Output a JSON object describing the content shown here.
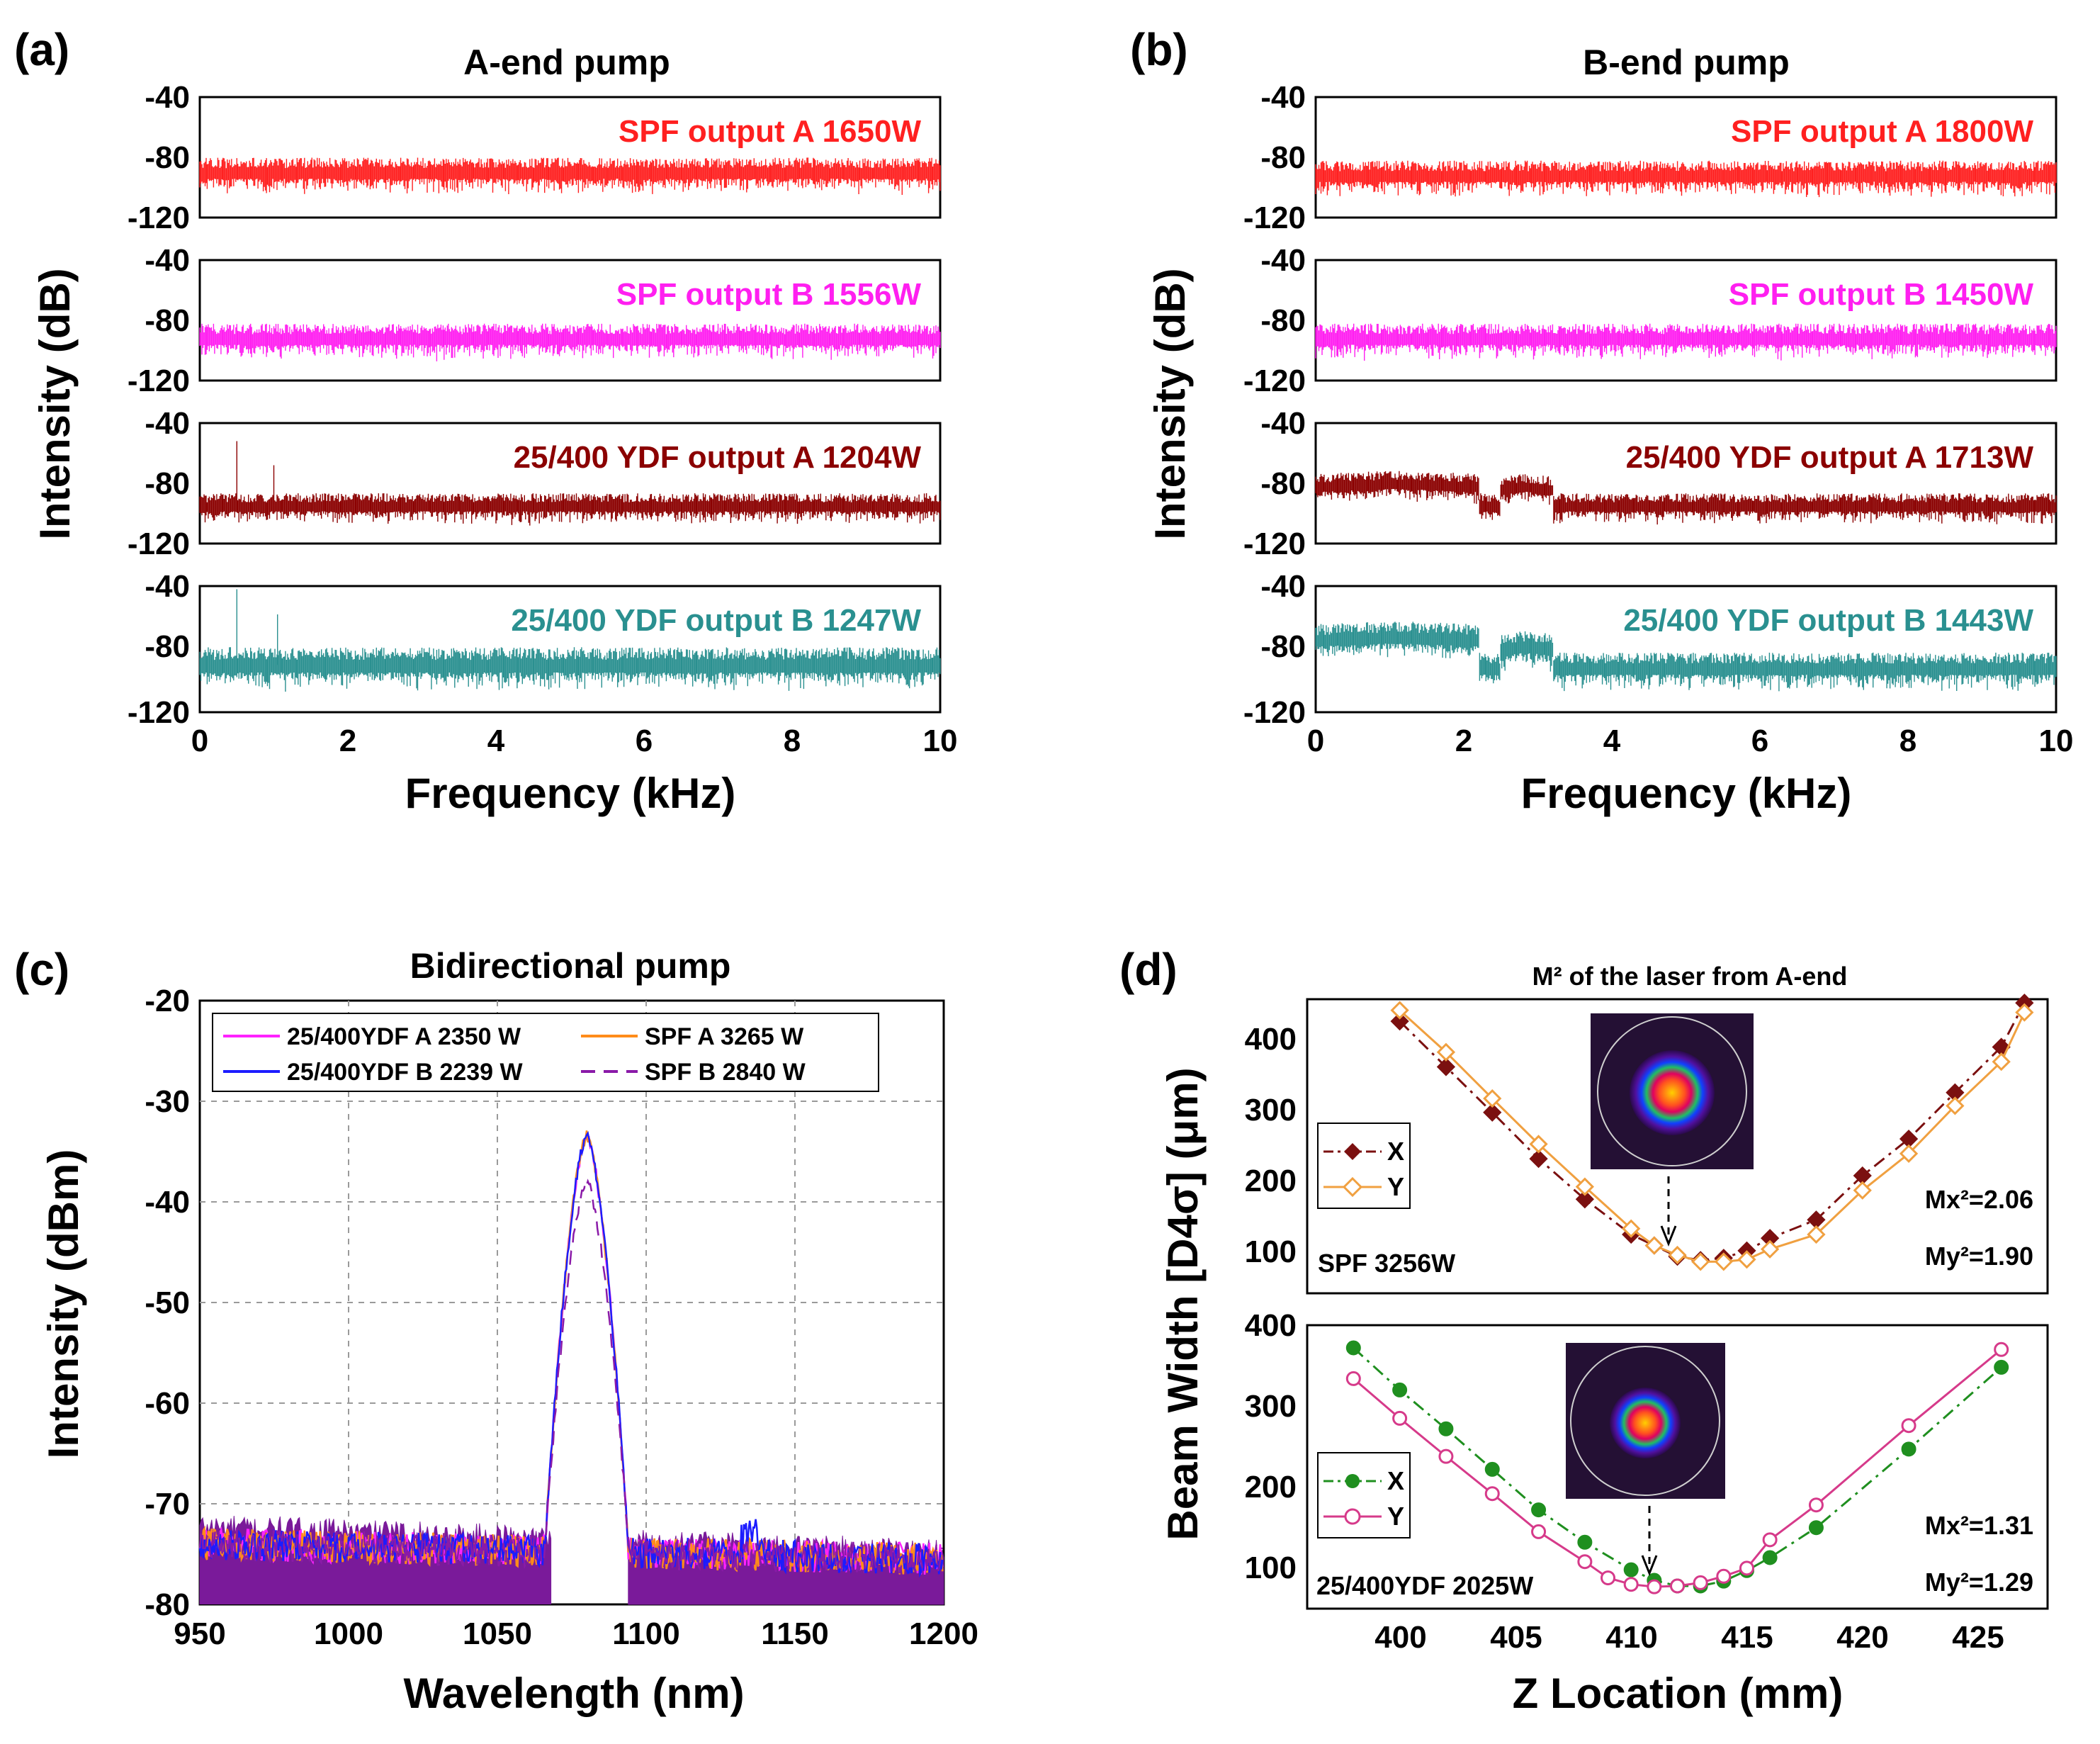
{
  "chart_data": [
    {
      "id": "a",
      "panel_label": "(a)",
      "title": "A-end pump",
      "type": "line",
      "xlabel": "Frequency (kHz)",
      "ylabel": "Intensity (dB)",
      "xlim": [
        0,
        10
      ],
      "ylim": [
        -120,
        -40
      ],
      "xticks": [
        "0",
        "2",
        "4",
        "6",
        "8",
        "10"
      ],
      "yticks": [
        "-40",
        "-80",
        "-120"
      ],
      "series": [
        {
          "name": "SPF output A 1650W",
          "color": "#ff2020",
          "baseline": -90,
          "spread": 7,
          "spikes": [],
          "bumps": []
        },
        {
          "name": "SPF output B 1556W",
          "color": "#ff1ff0",
          "baseline": -92,
          "spread": 7,
          "spikes": [],
          "bumps": []
        },
        {
          "name": "25/400 YDF output A 1204W",
          "color": "#8b0000",
          "baseline": -95,
          "spread": 6,
          "spikes": [
            [
              0.5,
              -52
            ],
            [
              1.0,
              -68
            ]
          ],
          "bumps": []
        },
        {
          "name": "25/400 YDF output B 1247W",
          "color": "#2a9090",
          "baseline": -90,
          "spread": 8,
          "spikes": [
            [
              0.5,
              -42
            ],
            [
              1.05,
              -58
            ]
          ],
          "bumps": []
        }
      ]
    },
    {
      "id": "b",
      "panel_label": "(b)",
      "title": "B-end pump",
      "type": "line",
      "xlabel": "Frequency (kHz)",
      "ylabel": "Intensity (dB)",
      "xlim": [
        0,
        10
      ],
      "ylim": [
        -120,
        -40
      ],
      "xticks": [
        "0",
        "2",
        "4",
        "6",
        "8",
        "10"
      ],
      "yticks": [
        "-40",
        "-80",
        "-120"
      ],
      "series": [
        {
          "name": "SPF output A 1800W",
          "color": "#ff2020",
          "baseline": -92,
          "spread": 7,
          "spikes": [],
          "bumps": []
        },
        {
          "name": "SPF output B 1450W",
          "color": "#ff1ff0",
          "baseline": -92,
          "spread": 7,
          "spikes": [],
          "bumps": []
        },
        {
          "name": "25/400 YDF output A 1713W",
          "color": "#8b0000",
          "baseline": -95,
          "spread": 6,
          "spikes": [],
          "bumps": [
            [
              0,
              2.2,
              -80
            ],
            [
              2.5,
              3.2,
              -82
            ]
          ]
        },
        {
          "name": "25/400 YDF output B 1443W",
          "color": "#2a9090",
          "baseline": -92,
          "spread": 7,
          "spikes": [],
          "bumps": [
            [
              0,
              2.2,
              -72
            ],
            [
              2.5,
              3.2,
              -78
            ]
          ]
        }
      ]
    },
    {
      "id": "c",
      "panel_label": "(c)",
      "title": "Bidirectional pump",
      "type": "line",
      "xlabel": "Wavelength (nm)",
      "ylabel": "Intensity (dBm)",
      "xlim": [
        950,
        1200
      ],
      "ylim": [
        -80,
        -20
      ],
      "xticks": [
        "950",
        "1000",
        "1050",
        "1100",
        "1150",
        "1200"
      ],
      "yticks": [
        "-20",
        "-30",
        "-40",
        "-50",
        "-60",
        "-70",
        "-80"
      ],
      "series": [
        {
          "name": "25/400YDF A 2350 W",
          "color": "#ff22ff",
          "dash": "",
          "peak_x": 1080,
          "peak_y": -33.5
        },
        {
          "name": "SPF A 3265 W",
          "color": "#ff8c1a",
          "dash": "",
          "peak_x": 1080,
          "peak_y": -33.5
        },
        {
          "name": "25/400YDF B 2239 W",
          "color": "#1c1cff",
          "dash": "",
          "peak_x": 1080,
          "peak_y": -33.5
        },
        {
          "name": "SPF B 2840 W",
          "color": "#8a1aa8",
          "dash": "20 12",
          "peak_x": 1080,
          "peak_y": -38
        }
      ]
    },
    {
      "id": "d",
      "panel_label": "(d)",
      "title": "M² of the laser from A-end",
      "type": "scatter",
      "xlabel": "Z Location (mm)",
      "ylabel": "Beam Width [D4σ] (μm)",
      "xlim": [
        396,
        428
      ],
      "xticks": [
        "400",
        "405",
        "410",
        "415",
        "420",
        "425"
      ],
      "subplots": [
        {
          "ylim": [
            50,
            450
          ],
          "yticks": [
            "100",
            "200",
            "300",
            "400"
          ],
          "annotation": "SPF 3256W",
          "mx_label": "Mx²=2.06",
          "my_label": "My²=1.90",
          "series": [
            {
              "name": "X",
              "color": "#7b1010",
              "marker": "diamond-filled",
              "dash": "18 8 4 8",
              "x": [
                400,
                402,
                404,
                406,
                408,
                410,
                411,
                412,
                413,
                414,
                415,
                416,
                418,
                420,
                422,
                424,
                426,
                427
              ],
              "y": [
                420,
                358,
                296,
                233,
                178,
                130,
                115,
                100,
                95,
                98,
                108,
                125,
                150,
                210,
                260,
                323,
                385,
                445
              ]
            },
            {
              "name": "Y",
              "color": "#f0a040",
              "marker": "diamond-open",
              "dash": "",
              "x": [
                400,
                402,
                404,
                406,
                408,
                410,
                411,
                412,
                413,
                414,
                415,
                416,
                418,
                420,
                422,
                424,
                426,
                427
              ],
              "y": [
                435,
                378,
                315,
                253,
                195,
                138,
                115,
                102,
                93,
                93,
                96,
                110,
                130,
                190,
                240,
                305,
                365,
                432
              ]
            }
          ]
        },
        {
          "ylim": [
            50,
            400
          ],
          "yticks": [
            "100",
            "200",
            "300",
            "400"
          ],
          "annotation": "25/400YDF 2025W",
          "mx_label": "Mx²=1.31",
          "my_label": "My²=1.29",
          "series": [
            {
              "name": "X",
              "color": "#1f8f1f",
              "marker": "circle-filled",
              "dash": "18 8 4 8",
              "x": [
                398,
                400,
                402,
                404,
                406,
                408,
                410,
                411,
                412,
                413,
                414,
                415,
                416,
                418,
                422,
                426
              ],
              "y": [
                372,
                320,
                272,
                222,
                172,
                132,
                98,
                85,
                78,
                78,
                84,
                97,
                113,
                150,
                247,
                348
              ]
            },
            {
              "name": "Y",
              "color": "#d63a8a",
              "marker": "circle-open",
              "dash": "",
              "x": [
                398,
                400,
                402,
                404,
                406,
                408,
                409,
                410,
                411,
                412,
                413,
                414,
                415,
                416,
                418,
                422,
                426
              ],
              "y": [
                334,
                285,
                238,
                192,
                145,
                108,
                88,
                80,
                77,
                78,
                82,
                90,
                100,
                135,
                178,
                276,
                370
              ]
            }
          ]
        }
      ]
    }
  ]
}
